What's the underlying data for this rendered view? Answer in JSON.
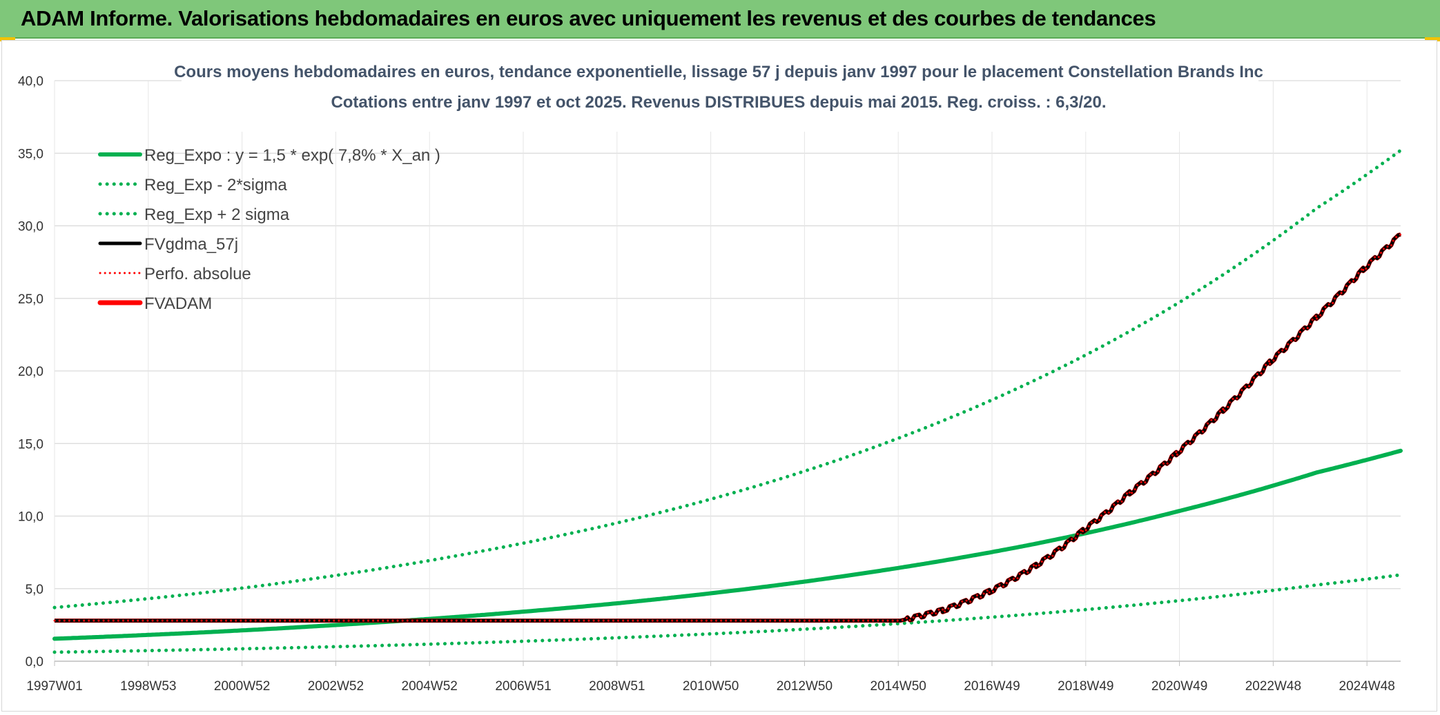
{
  "banner": {
    "title": "ADAM Informe. Valorisations hebdomadaires en euros avec uniquement les revenus et des courbes de tendances"
  },
  "colors": {
    "banner_bg": "#7fc77a",
    "green": "#00b050",
    "red": "#ff0000",
    "black": "#000000",
    "title": "#44546a",
    "grid": "#d9d9d9"
  },
  "chart_data": {
    "type": "line",
    "title": "Cours moyens hebdomadaires en euros, tendance exponentielle, lissage 57 j depuis janv 1997 pour le placement Constellation Brands Inc",
    "subtitle": "Cotations entre janv 1997 et oct 2025. Revenus DISTRIBUES depuis mai 2015. Reg. croiss. : 6,3/20.",
    "xlabel": "",
    "ylabel": "",
    "ylim": [
      0,
      40
    ],
    "yticks": [
      "0,0",
      "5,0",
      "10,0",
      "15,0",
      "20,0",
      "25,0",
      "30,0",
      "35,0",
      "40,0"
    ],
    "xlim": [
      1997.0,
      2025.8
    ],
    "xtick_labels": [
      "1997W01",
      "1998W53",
      "2000W52",
      "2002W52",
      "2004W52",
      "2006W51",
      "2008W51",
      "2010W50",
      "2012W50",
      "2014W50",
      "2016W49",
      "2018W49",
      "2020W49",
      "2022W48",
      "2024W48"
    ],
    "grid": true,
    "legend_position": "top-left",
    "series": [
      {
        "name": "Reg_Expo : y = 1,5 * exp( 7,8% *  X_an )",
        "style": "solid",
        "color": "#00b050",
        "x": [
          1997,
          2000,
          2003,
          2006,
          2009,
          2012,
          2015,
          2018,
          2021,
          2024,
          2025.8
        ],
        "values": [
          1.55,
          1.96,
          2.49,
          3.15,
          3.98,
          5.05,
          6.4,
          8.1,
          10.3,
          13.0,
          14.5
        ]
      },
      {
        "name": "Reg_Exp - 2*sigma",
        "style": "dotted",
        "color": "#00b050",
        "x": [
          1997,
          2000,
          2003,
          2006,
          2009,
          2012,
          2015,
          2018,
          2021,
          2024,
          2025.8
        ],
        "values": [
          0.62,
          0.79,
          1.0,
          1.27,
          1.61,
          2.03,
          2.58,
          3.27,
          4.15,
          5.25,
          5.95
        ]
      },
      {
        "name": "Reg_Exp + 2 sigma",
        "style": "dotted",
        "color": "#00b050",
        "x": [
          1997,
          2000,
          2003,
          2006,
          2009,
          2012,
          2015,
          2018,
          2021,
          2024,
          2025.8
        ],
        "values": [
          3.7,
          4.65,
          5.9,
          7.5,
          9.5,
          12.05,
          15.3,
          19.4,
          24.6,
          31.2,
          35.2
        ]
      },
      {
        "name": "FVgdma_57j",
        "style": "solid",
        "color": "#000000",
        "x": [
          1997,
          2015.1,
          2016,
          2017,
          2018,
          2019,
          2020,
          2021,
          2022,
          2023,
          2024,
          2025,
          2025.8
        ],
        "values": [
          2.8,
          2.8,
          3.5,
          4.8,
          6.6,
          9.0,
          11.6,
          14.3,
          17.3,
          20.6,
          23.7,
          27.0,
          29.4
        ]
      },
      {
        "name": "Perfo. absolue",
        "style": "dotted",
        "color": "#ff0000",
        "x": [
          1997,
          2015.1,
          2016,
          2017,
          2018,
          2019,
          2020,
          2021,
          2022,
          2023,
          2024,
          2025,
          2025.8
        ],
        "values": [
          2.8,
          2.8,
          3.5,
          4.8,
          6.6,
          9.0,
          11.6,
          14.3,
          17.3,
          20.6,
          23.7,
          27.0,
          29.4
        ]
      },
      {
        "name": "FVADAM",
        "style": "solid",
        "color": "#ff0000",
        "x": [
          1997,
          2015.1,
          2016,
          2017,
          2018,
          2019,
          2020,
          2021,
          2022,
          2023,
          2024,
          2025,
          2025.8
        ],
        "values": [
          2.8,
          2.8,
          3.5,
          4.8,
          6.6,
          9.0,
          11.6,
          14.3,
          17.3,
          20.6,
          23.7,
          27.0,
          29.4
        ]
      }
    ]
  }
}
